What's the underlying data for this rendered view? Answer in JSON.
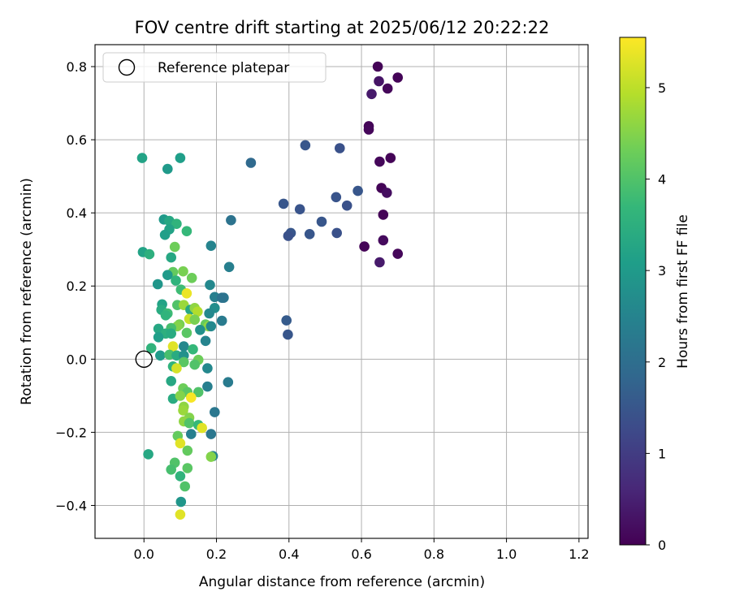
{
  "chart_data": {
    "type": "scatter",
    "title": "FOV centre drift starting at 2025/06/12 20:22:22",
    "xlabel": "Angular distance from reference (arcmin)",
    "ylabel": "Rotation from reference (arcmin)",
    "xlim": [
      -0.135,
      1.225
    ],
    "ylim": [
      -0.49,
      0.86
    ],
    "xticks": [
      0.0,
      0.2,
      0.4,
      0.6,
      0.8,
      1.0,
      1.2
    ],
    "xtick_labels": [
      "0.0",
      "0.2",
      "0.4",
      "0.6",
      "0.8",
      "1.0",
      "1.2"
    ],
    "yticks": [
      -0.4,
      -0.2,
      0.0,
      0.2,
      0.4,
      0.6,
      0.8
    ],
    "ytick_labels": [
      "−0.4",
      "−0.2",
      "0.0",
      "0.2",
      "0.4",
      "0.6",
      "0.8"
    ],
    "grid": true,
    "legend_position": "top-left",
    "legend": [
      {
        "label": "Reference platepar",
        "marker": "open-circle"
      }
    ],
    "reference_point": {
      "x": 0.0,
      "y": 0.0
    },
    "colorbar": {
      "label": "Hours from first FF file",
      "min": 0,
      "max": 5.55,
      "ticks": [
        0,
        1,
        2,
        3,
        4,
        5
      ],
      "tick_labels": [
        "0",
        "1",
        "2",
        "3",
        "4",
        "5"
      ],
      "colormap": "viridis",
      "colors": [
        "#440154",
        "#482878",
        "#3e4989",
        "#31688e",
        "#26828e",
        "#1f9e89",
        "#35b779",
        "#6ece58",
        "#b5de2b",
        "#fde725"
      ]
    },
    "series": [
      {
        "points": [
          [
            0.645,
            0.8,
            0.05
          ],
          [
            0.7,
            0.77,
            0.05
          ],
          [
            0.648,
            0.76,
            0.3
          ],
          [
            0.672,
            0.74,
            0.1
          ],
          [
            0.628,
            0.725,
            0.4
          ],
          [
            0.62,
            0.637,
            0.05
          ],
          [
            0.62,
            0.628,
            0.1
          ],
          [
            0.68,
            0.55,
            0.05
          ],
          [
            0.65,
            0.54,
            0.1
          ],
          [
            0.655,
            0.468,
            0.05
          ],
          [
            0.67,
            0.455,
            0.2
          ],
          [
            0.66,
            0.395,
            0.05
          ],
          [
            0.608,
            0.308,
            0.05
          ],
          [
            0.66,
            0.325,
            0.15
          ],
          [
            0.65,
            0.265,
            0.4
          ],
          [
            0.7,
            0.288,
            0.1
          ],
          [
            0.445,
            0.585,
            1.5
          ],
          [
            0.54,
            0.577,
            1.4
          ],
          [
            0.295,
            0.537,
            1.9
          ],
          [
            0.59,
            0.46,
            1.5
          ],
          [
            0.53,
            0.443,
            1.45
          ],
          [
            0.385,
            0.425,
            1.5
          ],
          [
            0.56,
            0.42,
            1.4
          ],
          [
            0.43,
            0.41,
            1.45
          ],
          [
            0.49,
            0.376,
            1.5
          ],
          [
            0.405,
            0.345,
            1.5
          ],
          [
            0.398,
            0.337,
            1.4
          ],
          [
            0.457,
            0.342,
            1.5
          ],
          [
            0.532,
            0.345,
            1.4
          ],
          [
            0.393,
            0.106,
            1.6
          ],
          [
            0.397,
            0.067,
            1.5
          ],
          [
            -0.005,
            0.55,
            3.2
          ],
          [
            0.1,
            0.55,
            3.1
          ],
          [
            0.065,
            0.52,
            3.0
          ],
          [
            0.24,
            0.38,
            2.1
          ],
          [
            0.055,
            0.382,
            3.0
          ],
          [
            0.07,
            0.378,
            3.3
          ],
          [
            0.09,
            0.37,
            3.6
          ],
          [
            0.07,
            0.355,
            3.2
          ],
          [
            0.058,
            0.34,
            3.1
          ],
          [
            0.118,
            0.35,
            3.7
          ],
          [
            0.185,
            0.31,
            2.5
          ],
          [
            0.085,
            0.307,
            4.3
          ],
          [
            -0.003,
            0.293,
            3.2
          ],
          [
            0.015,
            0.287,
            3.5
          ],
          [
            0.075,
            0.278,
            3.3
          ],
          [
            0.235,
            0.252,
            2.4
          ],
          [
            0.08,
            0.238,
            4.2
          ],
          [
            0.108,
            0.24,
            4.4
          ],
          [
            0.065,
            0.23,
            3.0
          ],
          [
            0.132,
            0.222,
            4.3
          ],
          [
            0.088,
            0.215,
            3.6
          ],
          [
            0.038,
            0.205,
            2.9
          ],
          [
            0.182,
            0.203,
            2.6
          ],
          [
            0.102,
            0.19,
            3.8
          ],
          [
            0.118,
            0.18,
            5.4
          ],
          [
            0.195,
            0.17,
            2.4
          ],
          [
            0.22,
            0.168,
            2.2
          ],
          [
            0.215,
            0.168,
            2.1
          ],
          [
            0.05,
            0.15,
            3.2
          ],
          [
            0.092,
            0.148,
            4.0
          ],
          [
            0.11,
            0.148,
            4.7
          ],
          [
            0.128,
            0.135,
            3.3
          ],
          [
            0.14,
            0.14,
            4.6
          ],
          [
            0.148,
            0.13,
            4.9
          ],
          [
            0.195,
            0.14,
            2.7
          ],
          [
            0.048,
            0.135,
            3.4
          ],
          [
            0.065,
            0.125,
            3.8
          ],
          [
            0.06,
            0.12,
            3.6
          ],
          [
            0.18,
            0.125,
            2.6
          ],
          [
            0.215,
            0.105,
            2.3
          ],
          [
            0.125,
            0.11,
            5.1
          ],
          [
            0.14,
            0.108,
            4.4
          ],
          [
            0.17,
            0.095,
            4.2
          ],
          [
            0.178,
            0.09,
            4.6
          ],
          [
            0.098,
            0.095,
            4.4
          ],
          [
            0.092,
            0.09,
            4.5
          ],
          [
            0.075,
            0.085,
            3.9
          ],
          [
            0.04,
            0.083,
            3.3
          ],
          [
            0.185,
            0.09,
            2.6
          ],
          [
            0.155,
            0.08,
            2.8
          ],
          [
            0.06,
            0.07,
            3.5
          ],
          [
            0.075,
            0.07,
            3.4
          ],
          [
            0.118,
            0.072,
            4.1
          ],
          [
            0.04,
            0.06,
            3.1
          ],
          [
            0.17,
            0.05,
            2.5
          ],
          [
            0.02,
            0.03,
            3.6
          ],
          [
            0.11,
            0.035,
            2.6
          ],
          [
            0.135,
            0.027,
            3.7
          ],
          [
            0.08,
            0.035,
            5.3
          ],
          [
            0.045,
            0.01,
            3.0
          ],
          [
            0.07,
            0.012,
            3.9
          ],
          [
            0.09,
            0.01,
            3.4
          ],
          [
            0.11,
            0.01,
            2.8
          ],
          [
            0.15,
            -0.002,
            4.3
          ],
          [
            0.11,
            -0.008,
            4.1
          ],
          [
            0.14,
            -0.015,
            4.0
          ],
          [
            0.08,
            -0.02,
            3.6
          ],
          [
            0.09,
            -0.025,
            5.2
          ],
          [
            0.175,
            -0.025,
            2.6
          ],
          [
            0.075,
            -0.06,
            3.3
          ],
          [
            0.175,
            -0.075,
            2.4
          ],
          [
            0.232,
            -0.063,
            2.3
          ],
          [
            0.108,
            -0.08,
            4.3
          ],
          [
            0.12,
            -0.09,
            4.1
          ],
          [
            0.15,
            -0.09,
            4.0
          ],
          [
            0.08,
            -0.108,
            3.4
          ],
          [
            0.1,
            -0.1,
            4.5
          ],
          [
            0.13,
            -0.105,
            5.5
          ],
          [
            0.11,
            -0.13,
            4.6
          ],
          [
            0.108,
            -0.14,
            4.7
          ],
          [
            0.195,
            -0.145,
            2.2
          ],
          [
            0.125,
            -0.16,
            4.5
          ],
          [
            0.11,
            -0.17,
            4.6
          ],
          [
            0.125,
            -0.175,
            4.0
          ],
          [
            0.15,
            -0.18,
            3.7
          ],
          [
            0.16,
            -0.188,
            5.3
          ],
          [
            0.13,
            -0.205,
            2.4
          ],
          [
            0.185,
            -0.205,
            2.2
          ],
          [
            0.093,
            -0.21,
            4.2
          ],
          [
            0.1,
            -0.23,
            5.3
          ],
          [
            0.12,
            -0.25,
            4.2
          ],
          [
            0.012,
            -0.26,
            3.3
          ],
          [
            0.19,
            -0.265,
            2.5
          ],
          [
            0.185,
            -0.267,
            4.5
          ],
          [
            0.085,
            -0.283,
            4.0
          ],
          [
            0.12,
            -0.298,
            4.1
          ],
          [
            0.075,
            -0.302,
            3.9
          ],
          [
            0.1,
            -0.32,
            3.6
          ],
          [
            0.113,
            -0.348,
            4.0
          ],
          [
            0.102,
            -0.39,
            2.9
          ],
          [
            0.1,
            -0.425,
            5.3
          ]
        ]
      }
    ]
  }
}
